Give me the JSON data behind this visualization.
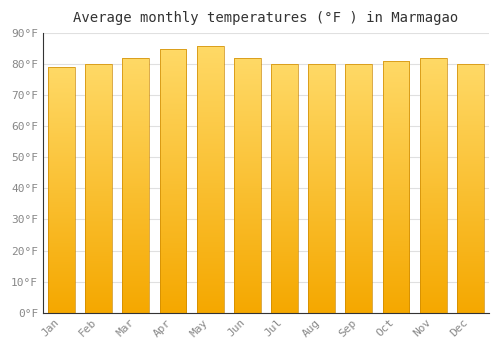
{
  "title": "Average monthly temperatures (°F ) in Marmagao",
  "months": [
    "Jan",
    "Feb",
    "Mar",
    "Apr",
    "May",
    "Jun",
    "Jul",
    "Aug",
    "Sep",
    "Oct",
    "Nov",
    "Dec"
  ],
  "values": [
    79,
    80,
    82,
    85,
    86,
    82,
    80,
    80,
    80,
    81,
    82,
    80
  ],
  "bar_color_top": "#FFD966",
  "bar_color_bottom": "#F5A800",
  "bar_edge_color": "#CC8800",
  "ylim": [
    0,
    90
  ],
  "yticks": [
    0,
    10,
    20,
    30,
    40,
    50,
    60,
    70,
    80,
    90
  ],
  "background_color": "#FFFFFF",
  "plot_bg_color": "#FFFFFF",
  "grid_color": "#E0E0E0",
  "title_fontsize": 10,
  "tick_fontsize": 8,
  "title_color": "#333333",
  "tick_color": "#888888"
}
